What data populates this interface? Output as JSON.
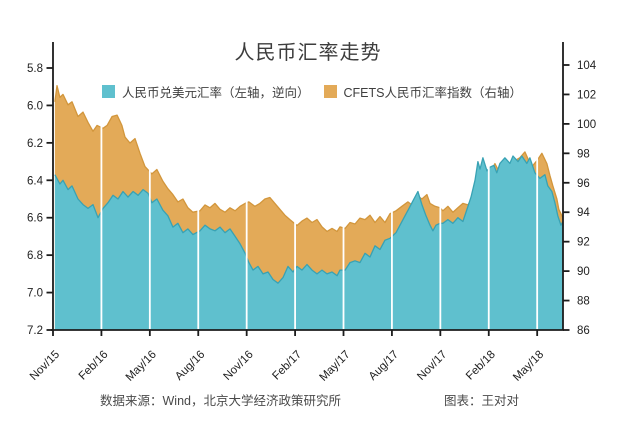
{
  "title": "人民币汇率走势",
  "footer": {
    "source": "数据来源：Wind，北京大学经济政策研究所",
    "credit": "图表：王对对"
  },
  "chart_data": {
    "type": "area",
    "title": "人民币汇率走势",
    "grid": "white vertical gridlines at quarterly ticks, drawn over fills",
    "legend_position": "top-center",
    "x_axis": {
      "epoch": "months since Nov/15",
      "range_months": [
        0,
        31.6
      ],
      "ticks": [
        {
          "t": 0,
          "label": "Nov/15"
        },
        {
          "t": 3,
          "label": "Feb/16"
        },
        {
          "t": 6,
          "label": "May/16"
        },
        {
          "t": 9,
          "label": "Aug/16"
        },
        {
          "t": 12,
          "label": "Nov/16"
        },
        {
          "t": 15,
          "label": "Feb/17"
        },
        {
          "t": 18,
          "label": "May/17"
        },
        {
          "t": 21,
          "label": "Aug/17"
        },
        {
          "t": 24,
          "label": "Nov/17"
        },
        {
          "t": 27,
          "label": "Feb/18"
        },
        {
          "t": 30,
          "label": "May/18"
        }
      ],
      "gridline_ts": [
        3,
        6,
        9,
        12,
        15,
        18,
        21,
        24,
        27,
        30
      ],
      "gridline_color": "#ffffff"
    },
    "left_axis": {
      "range": [
        5.8,
        7.2
      ],
      "inverted": true,
      "ticks": [
        "5.8",
        "6.0",
        "6.2",
        "6.4",
        "6.6",
        "6.8",
        "7.0",
        "7.2"
      ]
    },
    "right_axis": {
      "range": [
        86,
        104
      ],
      "ticks": [
        "104",
        "102",
        "100",
        "98",
        "96",
        "94",
        "92",
        "90",
        "88",
        "86"
      ]
    },
    "axis_color": "#1c1c1c",
    "series": [
      {
        "name": "人民币兑美元汇率（左轴，逆向）",
        "axis": "left",
        "fill": "#5fc0ce",
        "edge": "#38a2b4",
        "points": [
          [
            0.12,
            6.37
          ],
          [
            0.43,
            6.42
          ],
          [
            0.62,
            6.4
          ],
          [
            0.93,
            6.45
          ],
          [
            1.18,
            6.43
          ],
          [
            1.55,
            6.5
          ],
          [
            1.86,
            6.53
          ],
          [
            2.17,
            6.55
          ],
          [
            2.48,
            6.53
          ],
          [
            2.79,
            6.6
          ],
          [
            3.1,
            6.55
          ],
          [
            3.41,
            6.52
          ],
          [
            3.72,
            6.48
          ],
          [
            4.03,
            6.5
          ],
          [
            4.34,
            6.46
          ],
          [
            4.65,
            6.49
          ],
          [
            4.96,
            6.46
          ],
          [
            5.27,
            6.48
          ],
          [
            5.58,
            6.45
          ],
          [
            5.89,
            6.47
          ],
          [
            6.13,
            6.52
          ],
          [
            6.44,
            6.5
          ],
          [
            6.81,
            6.56
          ],
          [
            7.12,
            6.59
          ],
          [
            7.43,
            6.65
          ],
          [
            7.74,
            6.63
          ],
          [
            8.05,
            6.68
          ],
          [
            8.36,
            6.66
          ],
          [
            8.67,
            6.69
          ],
          [
            9.11,
            6.67
          ],
          [
            9.42,
            6.64
          ],
          [
            9.73,
            6.66
          ],
          [
            10.04,
            6.67
          ],
          [
            10.35,
            6.65
          ],
          [
            10.66,
            6.68
          ],
          [
            10.97,
            6.66
          ],
          [
            11.28,
            6.7
          ],
          [
            11.59,
            6.74
          ],
          [
            11.9,
            6.79
          ],
          [
            12.14,
            6.84
          ],
          [
            12.39,
            6.88
          ],
          [
            12.7,
            6.86
          ],
          [
            13.01,
            6.9
          ],
          [
            13.32,
            6.89
          ],
          [
            13.63,
            6.93
          ],
          [
            13.94,
            6.95
          ],
          [
            14.25,
            6.92
          ],
          [
            14.56,
            6.86
          ],
          [
            14.87,
            6.89
          ],
          [
            15.12,
            6.86
          ],
          [
            15.43,
            6.88
          ],
          [
            15.74,
            6.85
          ],
          [
            16.05,
            6.88
          ],
          [
            16.36,
            6.9
          ],
          [
            16.67,
            6.88
          ],
          [
            16.98,
            6.9
          ],
          [
            17.29,
            6.89
          ],
          [
            17.6,
            6.91
          ],
          [
            17.78,
            6.88
          ],
          [
            18.1,
            6.88
          ],
          [
            18.4,
            6.84
          ],
          [
            18.71,
            6.83
          ],
          [
            19.02,
            6.84
          ],
          [
            19.33,
            6.79
          ],
          [
            19.64,
            6.81
          ],
          [
            19.95,
            6.75
          ],
          [
            20.26,
            6.77
          ],
          [
            20.57,
            6.72
          ],
          [
            20.88,
            6.71
          ],
          [
            21.25,
            6.68
          ],
          [
            21.5,
            6.64
          ],
          [
            21.81,
            6.59
          ],
          [
            22.06,
            6.55
          ],
          [
            22.3,
            6.51
          ],
          [
            22.61,
            6.46
          ],
          [
            22.86,
            6.53
          ],
          [
            23.11,
            6.59
          ],
          [
            23.36,
            6.64
          ],
          [
            23.54,
            6.67
          ],
          [
            23.73,
            6.64
          ],
          [
            23.98,
            6.63
          ],
          [
            24.16,
            6.63
          ],
          [
            24.47,
            6.61
          ],
          [
            24.78,
            6.63
          ],
          [
            25.09,
            6.6
          ],
          [
            25.4,
            6.62
          ],
          [
            25.71,
            6.54
          ],
          [
            25.9,
            6.49
          ],
          [
            26.15,
            6.4
          ],
          [
            26.33,
            6.3
          ],
          [
            26.46,
            6.34
          ],
          [
            26.64,
            6.28
          ],
          [
            26.89,
            6.35
          ],
          [
            27.07,
            6.33
          ],
          [
            27.32,
            6.32
          ],
          [
            27.5,
            6.36
          ],
          [
            27.69,
            6.31
          ],
          [
            28.0,
            6.28
          ],
          [
            28.31,
            6.31
          ],
          [
            28.5,
            6.27
          ],
          [
            28.81,
            6.3
          ],
          [
            29.05,
            6.27
          ],
          [
            29.36,
            6.31
          ],
          [
            29.55,
            6.28
          ],
          [
            29.86,
            6.36
          ],
          [
            30.17,
            6.39
          ],
          [
            30.48,
            6.37
          ],
          [
            30.66,
            6.43
          ],
          [
            30.91,
            6.46
          ],
          [
            31.1,
            6.52
          ],
          [
            31.28,
            6.59
          ],
          [
            31.47,
            6.64
          ],
          [
            31.6,
            6.62
          ]
        ]
      },
      {
        "name": "CFETS人民币汇率指数（右轴）",
        "axis": "right",
        "fill": "#e3aa58",
        "edge": "#d2963c",
        "points": [
          [
            0.12,
            101.5
          ],
          [
            0.25,
            102.6
          ],
          [
            0.43,
            101.8
          ],
          [
            0.62,
            102.0
          ],
          [
            0.93,
            101.3
          ],
          [
            1.18,
            101.5
          ],
          [
            1.55,
            100.5
          ],
          [
            1.86,
            100.8
          ],
          [
            2.17,
            100.1
          ],
          [
            2.48,
            99.5
          ],
          [
            2.73,
            99.9
          ],
          [
            3.1,
            99.7
          ],
          [
            3.35,
            99.9
          ],
          [
            3.66,
            100.5
          ],
          [
            3.97,
            100.6
          ],
          [
            4.27,
            99.9
          ],
          [
            4.46,
            99.1
          ],
          [
            4.77,
            98.7
          ],
          [
            5.08,
            99.0
          ],
          [
            5.39,
            98.0
          ],
          [
            5.7,
            97.1
          ],
          [
            6.13,
            96.6
          ],
          [
            6.44,
            96.9
          ],
          [
            6.81,
            96.1
          ],
          [
            7.12,
            95.6
          ],
          [
            7.43,
            95.2
          ],
          [
            7.74,
            94.7
          ],
          [
            8.05,
            94.9
          ],
          [
            8.36,
            94.3
          ],
          [
            8.67,
            94.0
          ],
          [
            9.11,
            94.1
          ],
          [
            9.42,
            94.5
          ],
          [
            9.73,
            94.3
          ],
          [
            10.04,
            94.6
          ],
          [
            10.35,
            94.2
          ],
          [
            10.66,
            94.0
          ],
          [
            10.97,
            94.3
          ],
          [
            11.28,
            94.1
          ],
          [
            11.59,
            94.4
          ],
          [
            11.9,
            94.6
          ],
          [
            12.14,
            94.7
          ],
          [
            12.51,
            94.4
          ],
          [
            12.82,
            94.6
          ],
          [
            13.13,
            94.9
          ],
          [
            13.44,
            95.0
          ],
          [
            13.75,
            94.6
          ],
          [
            14.06,
            94.2
          ],
          [
            14.37,
            93.8
          ],
          [
            14.68,
            93.5
          ],
          [
            15.12,
            93.1
          ],
          [
            15.43,
            93.4
          ],
          [
            15.74,
            93.6
          ],
          [
            16.05,
            93.3
          ],
          [
            16.36,
            93.5
          ],
          [
            16.67,
            93.0
          ],
          [
            16.98,
            92.7
          ],
          [
            17.29,
            92.9
          ],
          [
            17.6,
            92.7
          ],
          [
            17.78,
            93.0
          ],
          [
            18.1,
            92.9
          ],
          [
            18.4,
            93.3
          ],
          [
            18.71,
            93.2
          ],
          [
            19.02,
            93.6
          ],
          [
            19.33,
            93.5
          ],
          [
            19.64,
            93.8
          ],
          [
            19.95,
            93.3
          ],
          [
            20.26,
            93.7
          ],
          [
            20.57,
            93.3
          ],
          [
            20.88,
            93.9
          ],
          [
            21.25,
            94.1
          ],
          [
            21.62,
            94.4
          ],
          [
            21.99,
            94.7
          ],
          [
            22.24,
            94.5
          ],
          [
            22.61,
            95.1
          ],
          [
            22.86,
            94.9
          ],
          [
            23.17,
            95.2
          ],
          [
            23.36,
            94.6
          ],
          [
            23.67,
            94.4
          ],
          [
            23.98,
            94.3
          ],
          [
            24.16,
            94.1
          ],
          [
            24.47,
            94.4
          ],
          [
            24.78,
            94.0
          ],
          [
            25.09,
            94.3
          ],
          [
            25.4,
            94.6
          ],
          [
            25.71,
            94.5
          ],
          [
            26.02,
            95.0
          ],
          [
            26.33,
            95.5
          ],
          [
            26.64,
            96.0
          ],
          [
            26.95,
            96.4
          ],
          [
            27.13,
            96.7
          ],
          [
            27.38,
            97.3
          ],
          [
            27.57,
            96.9
          ],
          [
            27.81,
            97.1
          ],
          [
            28.0,
            96.8
          ],
          [
            28.31,
            97.2
          ],
          [
            28.62,
            97.5
          ],
          [
            28.93,
            97.7
          ],
          [
            29.24,
            98.1
          ],
          [
            29.48,
            97.5
          ],
          [
            29.67,
            97.1
          ],
          [
            29.98,
            97.5
          ],
          [
            30.29,
            98.0
          ],
          [
            30.6,
            97.3
          ],
          [
            30.79,
            96.5
          ],
          [
            30.97,
            95.8
          ],
          [
            31.22,
            94.9
          ],
          [
            31.34,
            94.2
          ],
          [
            31.47,
            93.9
          ],
          [
            31.6,
            93.6
          ]
        ]
      }
    ]
  }
}
